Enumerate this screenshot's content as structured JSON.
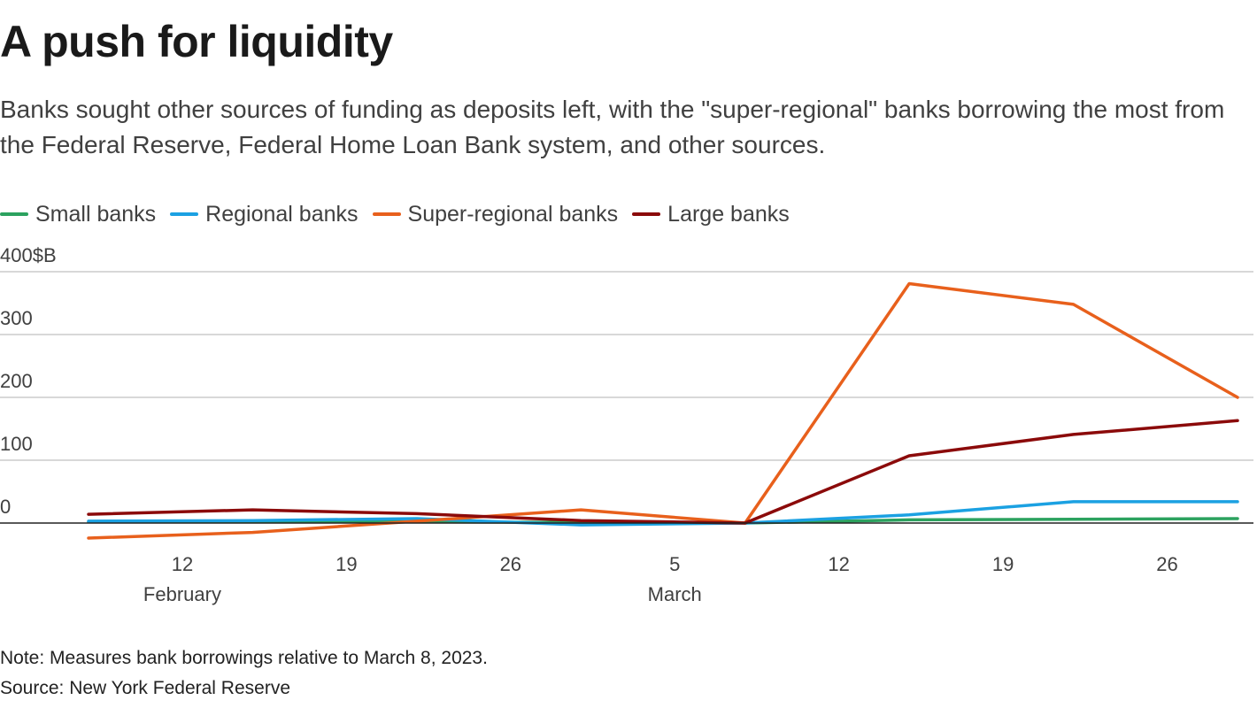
{
  "title": "A push for liquidity",
  "subtitle": "Banks sought other sources of funding as deposits left, with the \"super-regional\" banks borrowing the most from the Federal Reserve, Federal Home Loan Bank system, and other sources.",
  "note": "Note: Measures bank borrowings relative to March 8, 2023.",
  "source": "Source: New York Federal Reserve",
  "colors": {
    "small": "#2ca25f",
    "regional": "#1ba1e2",
    "super_regional": "#e8601c",
    "large": "#8b0a0a",
    "grid": "#cccccc",
    "axis": "#222222"
  },
  "chart_data": {
    "type": "line",
    "x_axis": {
      "type": "date",
      "range": [
        "2023-02-08",
        "2023-03-29"
      ],
      "ticks": [
        {
          "date": "2023-02-12",
          "label": "12",
          "month_label": "February"
        },
        {
          "date": "2023-02-19",
          "label": "19",
          "month_label": ""
        },
        {
          "date": "2023-02-26",
          "label": "26",
          "month_label": ""
        },
        {
          "date": "2023-03-05",
          "label": "5",
          "month_label": "March"
        },
        {
          "date": "2023-03-12",
          "label": "12",
          "month_label": ""
        },
        {
          "date": "2023-03-19",
          "label": "19",
          "month_label": ""
        },
        {
          "date": "2023-03-26",
          "label": "26",
          "month_label": ""
        }
      ]
    },
    "y_axis": {
      "range": [
        -25,
        400
      ],
      "ticks": [
        {
          "value": 0,
          "label": "0"
        },
        {
          "value": 100,
          "label": "100"
        },
        {
          "value": 200,
          "label": "200"
        },
        {
          "value": 300,
          "label": "300"
        },
        {
          "value": 400,
          "label": "400$B"
        }
      ],
      "grid": true
    },
    "legend_position": "top-left",
    "series": [
      {
        "name": "Small banks",
        "color_key": "small",
        "points": [
          {
            "x": "2023-02-08",
            "y": 2
          },
          {
            "x": "2023-02-15",
            "y": 2
          },
          {
            "x": "2023-02-22",
            "y": 2
          },
          {
            "x": "2023-03-01",
            "y": 1
          },
          {
            "x": "2023-03-08",
            "y": 0
          },
          {
            "x": "2023-03-15",
            "y": 5
          },
          {
            "x": "2023-03-22",
            "y": 6
          },
          {
            "x": "2023-03-29",
            "y": 7
          }
        ]
      },
      {
        "name": "Regional banks",
        "color_key": "regional",
        "points": [
          {
            "x": "2023-02-08",
            "y": 3
          },
          {
            "x": "2023-02-15",
            "y": 4
          },
          {
            "x": "2023-02-22",
            "y": 7
          },
          {
            "x": "2023-03-01",
            "y": -3
          },
          {
            "x": "2023-03-08",
            "y": 0
          },
          {
            "x": "2023-03-15",
            "y": 13
          },
          {
            "x": "2023-03-22",
            "y": 34
          },
          {
            "x": "2023-03-29",
            "y": 34
          }
        ]
      },
      {
        "name": "Super-regional banks",
        "color_key": "super_regional",
        "points": [
          {
            "x": "2023-02-08",
            "y": -24
          },
          {
            "x": "2023-02-15",
            "y": -15
          },
          {
            "x": "2023-02-22",
            "y": 3
          },
          {
            "x": "2023-03-01",
            "y": 21
          },
          {
            "x": "2023-03-08",
            "y": 0
          },
          {
            "x": "2023-03-15",
            "y": 381
          },
          {
            "x": "2023-03-22",
            "y": 348
          },
          {
            "x": "2023-03-29",
            "y": 200
          }
        ]
      },
      {
        "name": "Large banks",
        "color_key": "large",
        "points": [
          {
            "x": "2023-02-08",
            "y": 14
          },
          {
            "x": "2023-02-15",
            "y": 21
          },
          {
            "x": "2023-02-22",
            "y": 15
          },
          {
            "x": "2023-03-01",
            "y": 4
          },
          {
            "x": "2023-03-08",
            "y": 0
          },
          {
            "x": "2023-03-15",
            "y": 107
          },
          {
            "x": "2023-03-22",
            "y": 141
          },
          {
            "x": "2023-03-29",
            "y": 163
          }
        ]
      }
    ]
  }
}
